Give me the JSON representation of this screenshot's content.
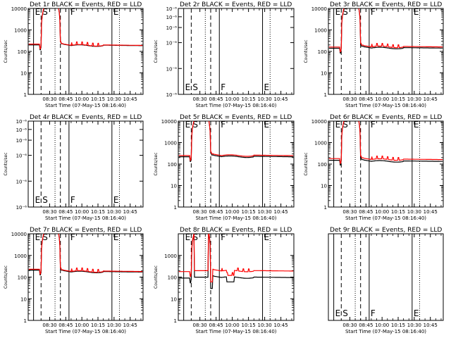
{
  "chart_data": [
    {
      "type": "line",
      "title": "Det 1r BLACK = Events, RED = LLD",
      "xlabel": "Start Time (07-May-15 08:16:40)",
      "ylabel": "Counts/sec",
      "y_scale": "log",
      "ylim": [
        1,
        10000
      ],
      "y_ticks": [
        1,
        10,
        100,
        1000,
        10000
      ],
      "y_tick_labels": [
        "1",
        "10",
        "100",
        "1000",
        "10000"
      ],
      "x_ticks": [
        30,
        45,
        60,
        75,
        90,
        105
      ],
      "x_tick_labels": [
        "08:30",
        "08:45",
        "10:00",
        "10:15",
        "10:30",
        "10:45"
      ],
      "xlim": [
        10,
        117
      ],
      "markers": [
        {
          "label": "E",
          "x": 15,
          "style": "solid"
        },
        {
          "label": "S",
          "x": 22,
          "style": "dashed"
        },
        {
          "label": "",
          "x": 40,
          "style": "dashed"
        },
        {
          "label": "F",
          "x": 48,
          "style": "solid"
        },
        {
          "label": "E",
          "x": 88,
          "style": "solid"
        },
        {
          "label": "",
          "x": 35,
          "style": "dotted"
        },
        {
          "label": "",
          "x": 95,
          "style": "dotted"
        }
      ],
      "series": [
        {
          "color": "#000000",
          "profile": "mid",
          "base": 200,
          "after": 195
        },
        {
          "color": "#ff0000",
          "profile": "mid",
          "base": 220,
          "after": 200,
          "spikes": true
        }
      ]
    },
    {
      "type": "line",
      "title": "Det 2r BLACK = Events, RED = LLD",
      "xlabel": "Start Time (07-May-15 08:16:40)",
      "ylabel": "Counts/sec",
      "y_scale": "log",
      "ylim": [
        1e-06,
        1e-05
      ],
      "y_ticks": [
        1e-06,
        2e-06,
        4e-06,
        6e-06,
        8e-06,
        1e-05
      ],
      "y_tick_labels": [
        "10⁻⁶",
        "10⁻⁶",
        "10⁻⁶",
        "10⁻⁶",
        "10⁻⁶",
        "10⁻⁶"
      ],
      "x_ticks": [
        30,
        45,
        60,
        75,
        90,
        105
      ],
      "x_tick_labels": [
        "08:30",
        "08:45",
        "10:00",
        "10:15",
        "10:30",
        "10:45"
      ],
      "xlim": [
        10,
        117
      ],
      "markers": [
        {
          "label": "E",
          "x": 15,
          "style": "solid"
        },
        {
          "label": "S",
          "x": 22,
          "style": "dashed"
        },
        {
          "label": "",
          "x": 40,
          "style": "dashed"
        },
        {
          "label": "F",
          "x": 48,
          "style": "solid"
        },
        {
          "label": "E",
          "x": 88,
          "style": "solid"
        },
        {
          "label": "",
          "x": 35,
          "style": "dotted"
        },
        {
          "label": "",
          "x": 95,
          "style": "dotted"
        }
      ],
      "series": []
    },
    {
      "type": "line",
      "title": "Det 3r BLACK = Events, RED = LLD",
      "xlabel": "Start Time (07-May-15 08:16:40)",
      "ylabel": "Counts/sec",
      "y_scale": "log",
      "ylim": [
        1,
        10000
      ],
      "y_ticks": [
        1,
        10,
        100,
        1000,
        10000
      ],
      "y_tick_labels": [
        "1",
        "10",
        "100",
        "1000",
        "10000"
      ],
      "x_ticks": [
        30,
        45,
        60,
        75,
        90,
        105
      ],
      "x_tick_labels": [
        "08:30",
        "08:45",
        "10:00",
        "10:15",
        "10:30",
        "10:45"
      ],
      "xlim": [
        10,
        117
      ],
      "markers": [
        {
          "label": "E",
          "x": 15,
          "style": "solid"
        },
        {
          "label": "S",
          "x": 22,
          "style": "dashed"
        },
        {
          "label": "",
          "x": 40,
          "style": "dashed"
        },
        {
          "label": "F",
          "x": 48,
          "style": "solid"
        },
        {
          "label": "E",
          "x": 88,
          "style": "solid"
        },
        {
          "label": "",
          "x": 35,
          "style": "dotted"
        },
        {
          "label": "",
          "x": 95,
          "style": "dotted"
        }
      ],
      "series": [
        {
          "color": "#000000",
          "profile": "mid",
          "base": 140,
          "after": 150
        },
        {
          "color": "#ff0000",
          "profile": "mid",
          "base": 160,
          "after": 170,
          "spikes": true
        }
      ]
    },
    {
      "type": "line",
      "title": "Det 4r BLACK = Events, RED = LLD",
      "xlabel": "Start Time (07-May-15 08:16:40)",
      "ylabel": "Counts/sec",
      "y_scale": "log",
      "ylim": [
        1e-06,
        1e-05
      ],
      "y_ticks": [
        1e-06,
        2e-06,
        4e-06,
        6e-06,
        8e-06,
        1e-05
      ],
      "y_tick_labels": [
        "10⁻⁶",
        "10⁻⁶",
        "10⁻⁶",
        "10⁻⁶",
        "10⁻⁶",
        "10⁻⁶"
      ],
      "x_ticks": [
        30,
        45,
        60,
        75,
        90,
        105
      ],
      "x_tick_labels": [
        "08:30",
        "08:45",
        "10:00",
        "10:15",
        "10:30",
        "10:45"
      ],
      "xlim": [
        10,
        117
      ],
      "markers": [
        {
          "label": "E",
          "x": 15,
          "style": "solid"
        },
        {
          "label": "S",
          "x": 22,
          "style": "dashed"
        },
        {
          "label": "",
          "x": 40,
          "style": "dashed"
        },
        {
          "label": "F",
          "x": 48,
          "style": "solid"
        },
        {
          "label": "E",
          "x": 88,
          "style": "solid"
        },
        {
          "label": "",
          "x": 35,
          "style": "dotted"
        },
        {
          "label": "",
          "x": 95,
          "style": "dotted"
        }
      ],
      "series": []
    },
    {
      "type": "line",
      "title": "Det 5r BLACK = Events, RED = LLD",
      "xlabel": "Start Time (07-May-15 08:16:40)",
      "ylabel": "Counts/sec",
      "y_scale": "log",
      "ylim": [
        1,
        10000
      ],
      "y_ticks": [
        1,
        10,
        100,
        1000,
        10000
      ],
      "y_tick_labels": [
        "1",
        "10",
        "100",
        "1000",
        "10000"
      ],
      "x_ticks": [
        30,
        45,
        60,
        75,
        90,
        105
      ],
      "x_tick_labels": [
        "08:30",
        "08:45",
        "10:00",
        "10:15",
        "10:30",
        "10:45"
      ],
      "xlim": [
        10,
        117
      ],
      "markers": [
        {
          "label": "E",
          "x": 15,
          "style": "solid"
        },
        {
          "label": "S",
          "x": 22,
          "style": "dashed"
        },
        {
          "label": "",
          "x": 40,
          "style": "dashed"
        },
        {
          "label": "F",
          "x": 48,
          "style": "solid"
        },
        {
          "label": "E",
          "x": 88,
          "style": "solid"
        },
        {
          "label": "",
          "x": 35,
          "style": "dotted"
        },
        {
          "label": "",
          "x": 95,
          "style": "dotted"
        }
      ],
      "series": [
        {
          "color": "#000000",
          "profile": "mid",
          "base": 220,
          "after": 230
        },
        {
          "color": "#ff0000",
          "profile": "mid",
          "base": 250,
          "after": 260
        }
      ]
    },
    {
      "type": "line",
      "title": "Det 6r BLACK = Events, RED = LLD",
      "xlabel": "Start Time (07-May-15 08:16:40)",
      "ylabel": "Counts/sec",
      "y_scale": "log",
      "ylim": [
        1,
        10000
      ],
      "y_ticks": [
        1,
        10,
        100,
        1000,
        10000
      ],
      "y_tick_labels": [
        "1",
        "10",
        "100",
        "1000",
        "10000"
      ],
      "x_ticks": [
        30,
        45,
        60,
        75,
        90,
        105
      ],
      "x_tick_labels": [
        "08:30",
        "08:45",
        "10:00",
        "10:15",
        "10:30",
        "10:45"
      ],
      "xlim": [
        10,
        117
      ],
      "markers": [
        {
          "label": "E",
          "x": 15,
          "style": "solid"
        },
        {
          "label": "S",
          "x": 22,
          "style": "dashed"
        },
        {
          "label": "",
          "x": 40,
          "style": "dashed"
        },
        {
          "label": "F",
          "x": 48,
          "style": "solid"
        },
        {
          "label": "E",
          "x": 88,
          "style": "solid"
        },
        {
          "label": "",
          "x": 35,
          "style": "dotted"
        },
        {
          "label": "",
          "x": 95,
          "style": "dotted"
        }
      ],
      "series": [
        {
          "color": "#000000",
          "profile": "mid",
          "base": 150,
          "after": 140
        },
        {
          "color": "#ff0000",
          "profile": "mid",
          "base": 180,
          "after": 170,
          "spikes": true
        }
      ]
    },
    {
      "type": "line",
      "title": "Det 7r BLACK = Events, RED = LLD",
      "xlabel": "Start Time (07-May-15 08:16:40)",
      "ylabel": "Counts/sec",
      "y_scale": "log",
      "ylim": [
        1,
        10000
      ],
      "y_ticks": [
        1,
        10,
        100,
        1000,
        10000
      ],
      "y_tick_labels": [
        "1",
        "10",
        "100",
        "1000",
        "10000"
      ],
      "x_ticks": [
        30,
        45,
        60,
        75,
        90,
        105
      ],
      "x_tick_labels": [
        "08:30",
        "08:45",
        "10:00",
        "10:15",
        "10:30",
        "10:45"
      ],
      "xlim": [
        10,
        117
      ],
      "markers": [
        {
          "label": "E",
          "x": 15,
          "style": "solid"
        },
        {
          "label": "S",
          "x": 22,
          "style": "dashed"
        },
        {
          "label": "",
          "x": 40,
          "style": "dashed"
        },
        {
          "label": "F",
          "x": 48,
          "style": "solid"
        },
        {
          "label": "E",
          "x": 88,
          "style": "solid"
        },
        {
          "label": "",
          "x": 35,
          "style": "dotted"
        },
        {
          "label": "",
          "x": 95,
          "style": "dotted"
        }
      ],
      "series": [
        {
          "color": "#000000",
          "profile": "mid",
          "base": 210,
          "after": 180
        },
        {
          "color": "#ff0000",
          "profile": "mid",
          "base": 230,
          "after": 190,
          "spikes": true
        }
      ]
    },
    {
      "type": "line",
      "title": "Det 8r BLACK = Events, RED = LLD",
      "xlabel": "Start Time (07-May-15 08:16:40)",
      "ylabel": "Counts/sec",
      "y_scale": "log",
      "ylim": [
        1,
        10000
      ],
      "y_ticks": [
        1,
        10,
        100,
        1000
      ],
      "y_tick_labels": [
        "1",
        "10",
        "100",
        "1000"
      ],
      "x_ticks": [
        30,
        45,
        60,
        75,
        90,
        105
      ],
      "x_tick_labels": [
        "08:30",
        "08:45",
        "10:00",
        "10:15",
        "10:30",
        "10:45"
      ],
      "xlim": [
        10,
        117
      ],
      "markers": [
        {
          "label": "E",
          "x": 15,
          "style": "solid"
        },
        {
          "label": "S",
          "x": 22,
          "style": "dashed"
        },
        {
          "label": "",
          "x": 40,
          "style": "dashed"
        },
        {
          "label": "F",
          "x": 48,
          "style": "solid"
        },
        {
          "label": "E",
          "x": 88,
          "style": "solid"
        },
        {
          "label": "",
          "x": 35,
          "style": "dotted"
        },
        {
          "label": "",
          "x": 95,
          "style": "dotted"
        }
      ],
      "series": [
        {
          "color": "#000000",
          "profile": "low",
          "base": 90,
          "after": 100
        },
        {
          "color": "#ff0000",
          "profile": "low",
          "base": 180,
          "after": 200,
          "spikes": true
        }
      ]
    },
    {
      "type": "line",
      "title": "Det 9r BLACK = Events, RED = LLD",
      "xlabel": "Start Time (07-May-15 08:16:40)",
      "ylabel": "",
      "y_scale": "log",
      "ylim": [
        1,
        10000
      ],
      "y_ticks": [],
      "y_tick_labels": [],
      "x_ticks": [
        30,
        45,
        60,
        75,
        90,
        105
      ],
      "x_tick_labels": [
        "08:30",
        "08:45",
        "10:00",
        "10:15",
        "10:30",
        "10:45"
      ],
      "xlim": [
        10,
        117
      ],
      "markers": [
        {
          "label": "E",
          "x": 15,
          "style": "solid"
        },
        {
          "label": "S",
          "x": 22,
          "style": "dashed"
        },
        {
          "label": "",
          "x": 40,
          "style": "dashed"
        },
        {
          "label": "F",
          "x": 48,
          "style": "solid"
        },
        {
          "label": "E",
          "x": 88,
          "style": "solid"
        },
        {
          "label": "",
          "x": 35,
          "style": "dotted"
        },
        {
          "label": "",
          "x": 95,
          "style": "dotted"
        }
      ],
      "series": []
    }
  ]
}
